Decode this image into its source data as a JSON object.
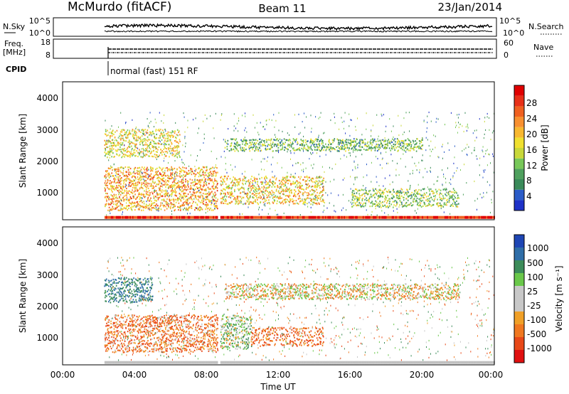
{
  "header": {
    "station": "McMurdo (fitACF)",
    "beam": "Beam 11",
    "date": "23/Jan/2014"
  },
  "noise_panel": {
    "left_label": "N.Sky",
    "left_ticks": [
      "10^5",
      "10^0"
    ],
    "right_label": "N.Search",
    "right_ticks": [
      "10^5",
      "10^0"
    ]
  },
  "freq_panel": {
    "left_label_line1": "Freq.",
    "left_label_line2": "[MHz]",
    "left_ticks": [
      "18",
      "8"
    ],
    "right_label": "Nave",
    "right_ticks": [
      "60",
      "0"
    ]
  },
  "cpid": {
    "label": "CPID",
    "text": "normal (fast) 151 RF"
  },
  "x_axis": {
    "label": "Time UT",
    "ticks": [
      "00:00",
      "04:00",
      "08:00",
      "12:00",
      "16:00",
      "20:00",
      "00:00"
    ]
  },
  "power_panel": {
    "ylabel": "Slant Range [km]",
    "yticks": [
      "1000",
      "2000",
      "3000",
      "4000"
    ],
    "colorbar_label": "Power [dB]",
    "colorbar_ticks": [
      "4",
      "8",
      "12",
      "16",
      "20",
      "24",
      "28"
    ]
  },
  "velocity_panel": {
    "ylabel": "Slant Range [km]",
    "yticks": [
      "1000",
      "2000",
      "3000",
      "4000"
    ],
    "colorbar_label": "Velocity [m s⁻¹]",
    "colorbar_ticks": [
      "1000",
      "500",
      "100",
      "25",
      "-25",
      "-100",
      "-500",
      "-1000"
    ]
  },
  "colors": {
    "power_scale": [
      "#1e32c8",
      "#2b5cc8",
      "#3a8a5a",
      "#4fa05e",
      "#78c85a",
      "#c8d83a",
      "#f0e030",
      "#f8b830",
      "#f89030",
      "#f06020",
      "#e83018",
      "#e00000"
    ],
    "velocity_scale": [
      "#1e46b4",
      "#2f6ea8",
      "#3c8c5a",
      "#6ac84a",
      "#c8c8c8",
      "#c8c8c8",
      "#f0a028",
      "#f07820",
      "#e84818",
      "#e01010"
    ],
    "ground_scatter": "#c0c0c0"
  },
  "chart_data": [
    {
      "type": "heatmap",
      "name": "power",
      "xlabel": "Time UT",
      "ylabel": "Slant Range [km]",
      "x_range_hours": [
        0,
        24
      ],
      "ylim_km": [
        180,
        4600
      ],
      "data_start_hour": 2.33,
      "data_gap_hours": [
        8.6,
        8.75
      ],
      "scatter_regions_km": [
        {
          "t": [
            2.3,
            8.6
          ],
          "r": [
            500,
            1900
          ],
          "level_db": 20
        },
        {
          "t": [
            2.3,
            6.5
          ],
          "r": [
            2200,
            3100
          ],
          "level_db": 16
        },
        {
          "t": [
            8.7,
            14.5
          ],
          "r": [
            700,
            1600
          ],
          "level_db": 18
        },
        {
          "t": [
            9,
            20
          ],
          "r": [
            2400,
            2800
          ],
          "level_db": 10
        },
        {
          "t": [
            16,
            22
          ],
          "r": [
            600,
            1200
          ],
          "level_db": 12
        }
      ],
      "colorbar": {
        "label": "Power [dB]",
        "ticks": [
          4,
          8,
          12,
          16,
          20,
          24,
          28
        ]
      }
    },
    {
      "type": "heatmap",
      "name": "velocity",
      "xlabel": "Time UT",
      "ylabel": "Slant Range [km]",
      "x_range_hours": [
        0,
        24
      ],
      "ylim_km": [
        180,
        4600
      ],
      "data_start_hour": 2.33,
      "data_gap_hours": [
        8.6,
        8.75
      ],
      "scatter_regions_km": [
        {
          "t": [
            2.3,
            8.6
          ],
          "r": [
            600,
            1800
          ],
          "velocity": -200
        },
        {
          "t": [
            2.3,
            5
          ],
          "r": [
            2200,
            3000
          ],
          "velocity": 500
        },
        {
          "t": [
            8.7,
            10.5
          ],
          "r": [
            700,
            1800
          ],
          "velocity": 150
        },
        {
          "t": [
            10.5,
            14.5
          ],
          "r": [
            800,
            1400
          ],
          "velocity": -250
        },
        {
          "t": [
            9,
            22
          ],
          "r": [
            2300,
            2800
          ],
          "velocity": 0
        }
      ],
      "colorbar": {
        "label": "Velocity [m s⁻¹]",
        "ticks": [
          1000,
          500,
          100,
          25,
          -25,
          -100,
          -500,
          -1000
        ]
      }
    }
  ]
}
